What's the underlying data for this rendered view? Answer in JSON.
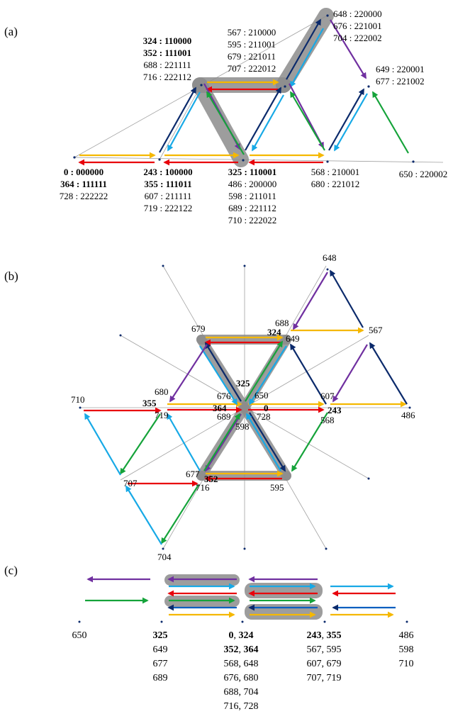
{
  "colors": {
    "yellow": "#F5B800",
    "red": "#E8000B",
    "navy": "#0B2A6B",
    "cyan": "#17A9E6",
    "green": "#15A33A",
    "purple": "#7030A0",
    "highlight": "#8C8C8C",
    "grid": "#A0A0A0"
  },
  "panel_a": {
    "label": "(a)",
    "groups": [
      {
        "lines": [
          {
            "t": "0 : 000000",
            "b": true
          },
          {
            "t": "364 : 111111",
            "b": true
          },
          {
            "t": "728 : 222222",
            "b": false
          }
        ]
      },
      {
        "lines": [
          {
            "t": "243 : 100000",
            "b": true
          },
          {
            "t": "355 : 111011",
            "b": true
          },
          {
            "t": "607 : 211111",
            "b": false
          },
          {
            "t": "719 : 222122",
            "b": false
          }
        ]
      },
      {
        "lines": [
          {
            "t": "325 : 110001",
            "b": true
          },
          {
            "t": "486 : 200000",
            "b": false
          },
          {
            "t": "598 : 211011",
            "b": false
          },
          {
            "t": "689 : 221112",
            "b": false
          },
          {
            "t": "710 : 222022",
            "b": false
          }
        ]
      },
      {
        "lines": [
          {
            "t": "568 : 210001",
            "b": false
          },
          {
            "t": "680 : 221012",
            "b": false
          }
        ]
      },
      {
        "lines": [
          {
            "t": "650 : 220002",
            "b": false
          }
        ]
      },
      {
        "lines": [
          {
            "t": "324 : 110000",
            "b": true
          },
          {
            "t": "352 : 111001",
            "b": true
          },
          {
            "t": "688 : 221111",
            "b": false
          },
          {
            "t": "716 : 222112",
            "b": false
          }
        ]
      },
      {
        "lines": [
          {
            "t": "567 : 210000",
            "b": false
          },
          {
            "t": "595 : 211001",
            "b": false
          },
          {
            "t": "679 : 221011",
            "b": false
          },
          {
            "t": "707 : 222012",
            "b": false
          }
        ]
      },
      {
        "lines": [
          {
            "t": "648 : 220000",
            "b": false
          },
          {
            "t": "676 : 221001",
            "b": false
          },
          {
            "t": "704 : 222002",
            "b": false
          }
        ]
      },
      {
        "lines": [
          {
            "t": "649 : 220001",
            "b": false
          },
          {
            "t": "677 : 221002",
            "b": false
          }
        ]
      }
    ]
  },
  "panel_b": {
    "label": "(b)",
    "labels": [
      {
        "t": "648",
        "b": false
      },
      {
        "t": "688",
        "b": false
      },
      {
        "t": "324",
        "b": true
      },
      {
        "t": "649",
        "b": false
      },
      {
        "t": "679",
        "b": false
      },
      {
        "t": "567",
        "b": false
      },
      {
        "t": "325",
        "b": true
      },
      {
        "t": "680",
        "b": false
      },
      {
        "t": "676",
        "b": false
      },
      {
        "t": "650",
        "b": false
      },
      {
        "t": "607",
        "b": false
      },
      {
        "t": "710",
        "b": false
      },
      {
        "t": "355",
        "b": true
      },
      {
        "t": "364",
        "b": true
      },
      {
        "t": "0",
        "b": true
      },
      {
        "t": "243",
        "b": true
      },
      {
        "t": "719",
        "b": false
      },
      {
        "t": "689",
        "b": false
      },
      {
        "t": "728",
        "b": false
      },
      {
        "t": "568",
        "b": false
      },
      {
        "t": "486",
        "b": false
      },
      {
        "t": "598",
        "b": false
      },
      {
        "t": "707",
        "b": false
      },
      {
        "t": "677",
        "b": false
      },
      {
        "t": "352",
        "b": true
      },
      {
        "t": "716",
        "b": false
      },
      {
        "t": "595",
        "b": false
      },
      {
        "t": "704",
        "b": false
      }
    ]
  },
  "panel_c": {
    "label": "(c)",
    "columns": [
      {
        "rows": [
          [
            {
              "t": "650",
              "b": false
            }
          ]
        ]
      },
      {
        "rows": [
          [
            {
              "t": "325",
              "b": true
            }
          ],
          [
            {
              "t": "649",
              "b": false
            }
          ],
          [
            {
              "t": "677",
              "b": false
            }
          ],
          [
            {
              "t": "689",
              "b": false
            }
          ]
        ]
      },
      {
        "rows": [
          [
            {
              "t": "0",
              "b": true
            },
            {
              "t": ", ",
              "b": false
            },
            {
              "t": "324",
              "b": true
            }
          ],
          [
            {
              "t": "352",
              "b": true
            },
            {
              "t": ", ",
              "b": false
            },
            {
              "t": "364",
              "b": true
            }
          ],
          [
            {
              "t": "568, 648",
              "b": false
            }
          ],
          [
            {
              "t": "676, 680",
              "b": false
            }
          ],
          [
            {
              "t": "688, 704",
              "b": false
            }
          ],
          [
            {
              "t": "716, 728",
              "b": false
            }
          ]
        ]
      },
      {
        "rows": [
          [
            {
              "t": "243",
              "b": true
            },
            {
              "t": ", ",
              "b": false
            },
            {
              "t": "355",
              "b": true
            }
          ],
          [
            {
              "t": "567, 595",
              "b": false
            }
          ],
          [
            {
              "t": "607, 679",
              "b": false
            }
          ],
          [
            {
              "t": "707, 719",
              "b": false
            }
          ]
        ]
      },
      {
        "rows": [
          [
            {
              "t": "486",
              "b": false
            }
          ],
          [
            {
              "t": "598",
              "b": false
            }
          ],
          [
            {
              "t": "710",
              "b": false
            }
          ]
        ]
      }
    ]
  }
}
